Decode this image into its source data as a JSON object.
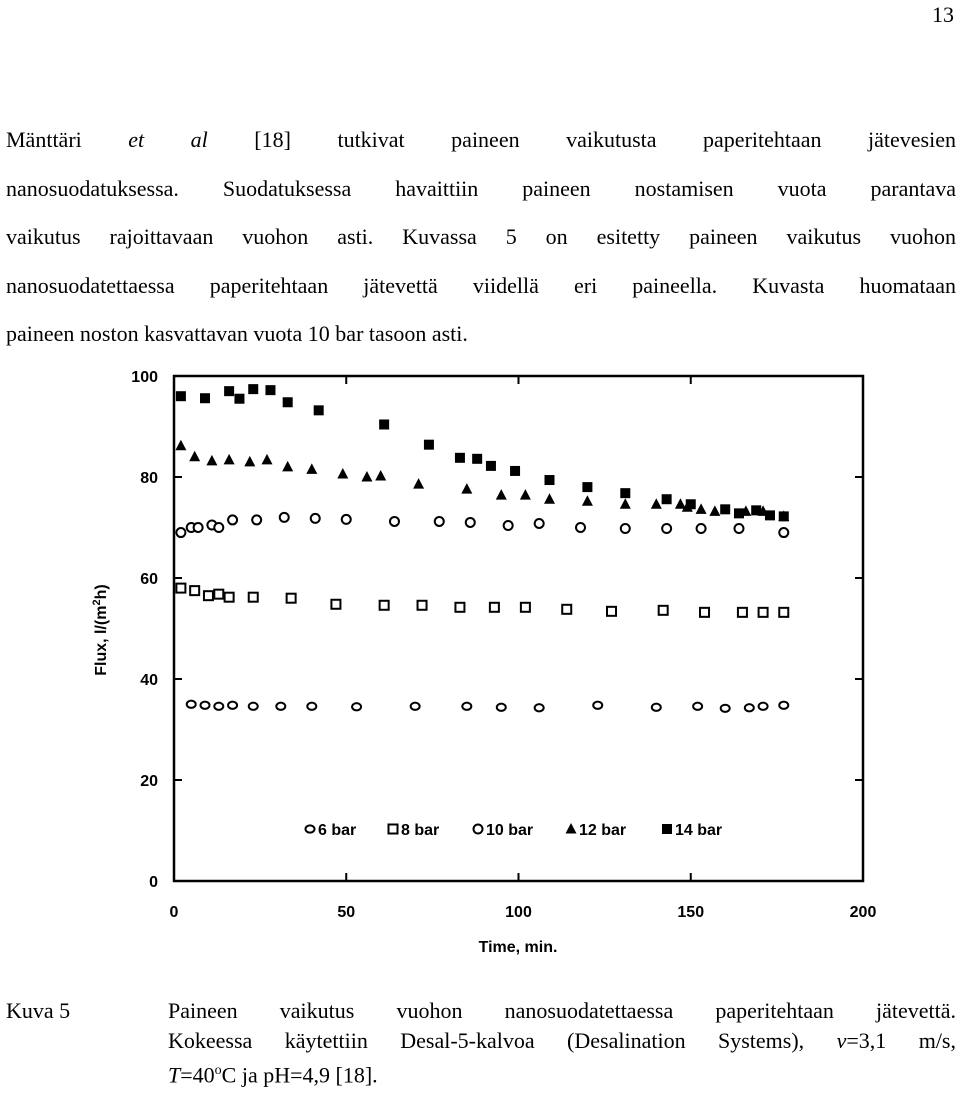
{
  "page_number": "13",
  "paragraph": {
    "lines": [
      {
        "a": "Mänttäri",
        "b": "et al",
        "c": "[18] tutkivat paineen vaikutusta paperitehtaan jätevesien"
      },
      {
        "a": "nanosuodatuksessa. Suodatuksessa havaittiin paineen nostamisen vuota parantava"
      },
      {
        "a": "vaikutus rajoittavaan vuohon asti. Kuvassa 5 on esitetty paineen vaikutus vuohon"
      },
      {
        "a": "nanosuodatettaessa paperitehtaan jätevettä viidellä eri paineella. Kuvasta huomataan"
      },
      {
        "a": "paineen noston kasvattavan vuota 10 bar tasoon asti."
      }
    ]
  },
  "chart_data": {
    "type": "scatter",
    "title": "",
    "xlabel": "Time, min.",
    "ylabel": "Flux, l/(m",
    "ylabel_sup": "2",
    "ylabel_end": "h)",
    "xlim": [
      0,
      200
    ],
    "ylim": [
      0,
      100
    ],
    "xticks": [
      "0",
      "50",
      "100",
      "150",
      "200"
    ],
    "yticks": [
      "0",
      "20",
      "40",
      "60",
      "80",
      "100"
    ],
    "grid": false,
    "legend_position": "bottom-right",
    "series": [
      {
        "name": "6 bar",
        "marker": "diamond-open",
        "x": [
          5,
          9,
          13,
          17,
          23,
          31,
          40,
          53,
          70,
          85,
          95,
          106,
          123,
          140,
          152,
          160,
          167,
          171,
          177
        ],
        "y": [
          35,
          34.8,
          34.6,
          34.8,
          34.6,
          34.6,
          34.6,
          34.5,
          34.6,
          34.6,
          34.4,
          34.3,
          34.8,
          34.4,
          34.6,
          34.2,
          34.3,
          34.6,
          34.8
        ]
      },
      {
        "name": "8 bar",
        "marker": "square-open",
        "x": [
          2,
          6,
          10,
          13,
          16,
          23,
          34,
          47,
          61,
          72,
          83,
          93,
          102,
          114,
          127,
          142,
          154,
          165,
          171,
          177
        ],
        "y": [
          58,
          57.5,
          56.5,
          56.8,
          56.2,
          56.2,
          56,
          54.8,
          54.6,
          54.6,
          54.2,
          54.2,
          54.2,
          53.8,
          53.4,
          53.6,
          53.2,
          53.2,
          53.2,
          53.2
        ]
      },
      {
        "name": "10 bar",
        "marker": "circle-open",
        "x": [
          2,
          5,
          7,
          11,
          13,
          17,
          24,
          32,
          41,
          50,
          64,
          77,
          86,
          97,
          106,
          118,
          131,
          143,
          153,
          164,
          177
        ],
        "y": [
          69,
          70,
          70,
          70.5,
          70,
          71.5,
          71.5,
          72,
          71.8,
          71.6,
          71.2,
          71.2,
          71,
          70.4,
          70.8,
          70,
          69.8,
          69.8,
          69.8,
          69.8,
          69
        ]
      },
      {
        "name": "12 bar",
        "marker": "triangle-filled",
        "x": [
          2,
          6,
          11,
          16,
          22,
          27,
          33,
          40,
          49,
          56,
          60,
          71,
          85,
          95,
          102,
          109,
          120,
          131,
          140,
          147,
          149,
          153,
          157,
          166,
          171,
          177
        ],
        "y": [
          86.2,
          84,
          83.2,
          83.4,
          83,
          83.4,
          82,
          81.5,
          80.6,
          80,
          80.2,
          78.6,
          77.6,
          76.4,
          76.4,
          75.6,
          75.2,
          74.6,
          74.6,
          74.6,
          74,
          73.6,
          73.2,
          73.2,
          73.2,
          72.2
        ]
      },
      {
        "name": "14 bar",
        "marker": "square-filled",
        "x": [
          2,
          9,
          16,
          19,
          23,
          28,
          33,
          42,
          61,
          74,
          83,
          88,
          92,
          99,
          109,
          120,
          131,
          143,
          150,
          160,
          164,
          169,
          173,
          177
        ],
        "y": [
          96,
          95.6,
          97,
          95.5,
          97.4,
          97.2,
          94.8,
          93.2,
          90.4,
          86.4,
          83.8,
          83.6,
          82.2,
          81.2,
          79.4,
          78,
          76.8,
          75.6,
          74.6,
          73.6,
          72.8,
          73.4,
          72.4,
          72.2
        ]
      }
    ]
  },
  "caption": {
    "label": "Kuva 5",
    "line1": "Paineen vaikutus vuohon nanosuodatettaessa paperitehtaan jätevettä.",
    "line2a": "Kokeessa käytettiin Desal-5-kalvoa (Desalination Systems),",
    "line2b": "v",
    "line2c": "=3,1 m/s,",
    "line3a": "T",
    "line3b": "=40",
    "line3c": "o",
    "line3d": "C ja pH=4,9 [18]."
  }
}
